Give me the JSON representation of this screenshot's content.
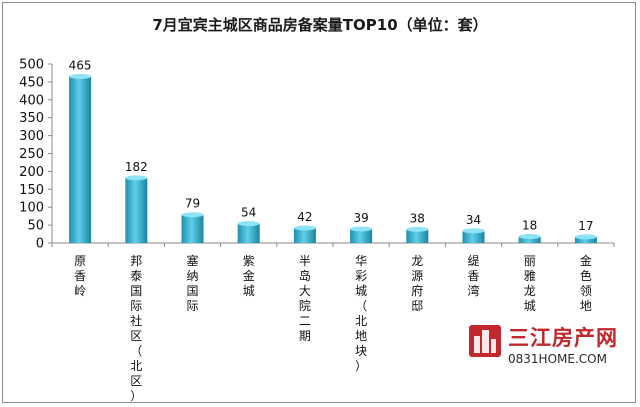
{
  "chart_data": {
    "type": "bar",
    "title": "7月宜宾主城区商品房备案量TOP10（单位：套）",
    "categories": [
      "原香岭",
      "邦泰国际社区（北区）",
      "塞纳国际",
      "紫金城",
      "半岛大院二期",
      "华彩城（北地块）",
      "龙源府邸",
      "缇香湾",
      "丽雅龙城",
      "金色领地"
    ],
    "values": [
      465,
      182,
      79,
      54,
      42,
      39,
      38,
      34,
      18,
      17
    ],
    "data_labels": [
      "465",
      "182",
      "79",
      "54",
      "42",
      "39",
      "38",
      "34",
      "18",
      "17"
    ],
    "ylim": [
      0,
      500
    ],
    "yticks": [
      0,
      50,
      100,
      150,
      200,
      250,
      300,
      350,
      400,
      450,
      500
    ],
    "xlabel": "",
    "ylabel": "",
    "grid": false,
    "bar_color": "#2aa6c4"
  },
  "watermark": {
    "brand": "三江房产网",
    "url": "0831HOME.COM",
    "icon": "building-logo-icon"
  }
}
